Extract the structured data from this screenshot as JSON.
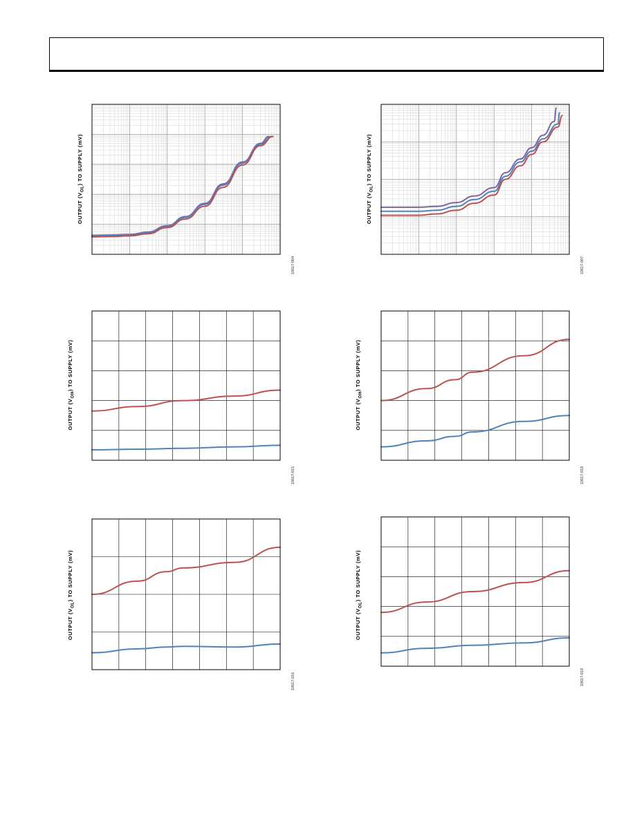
{
  "colors": {
    "red": "#c0504d",
    "blue": "#4f81bd",
    "purple": "#8064a2",
    "grid": "#d0d0d0",
    "frame": "#000000"
  },
  "header": {
    "title": ""
  },
  "charts": [
    {
      "ylabel_pre": "OUTPUT (V",
      "ylabel_sub": "OL",
      "ylabel_post": ") TO SUPPLY (mV)",
      "fig_id": "10617-004"
    },
    {
      "ylabel_pre": "OUTPUT (V",
      "ylabel_sub": "OL",
      "ylabel_post": ") TO SUPPLY (mV)",
      "fig_id": "10617-007"
    },
    {
      "ylabel_pre": "OUTPUT (V",
      "ylabel_sub": "OH",
      "ylabel_post": ") TO SUPPLY (mV)",
      "fig_id": "10617-015"
    },
    {
      "ylabel_pre": "OUTPUT (V",
      "ylabel_sub": "OH",
      "ylabel_post": ") TO SUPPLY (mV)",
      "fig_id": "10617-018"
    },
    {
      "ylabel_pre": "OUTPUT (V",
      "ylabel_sub": "OL",
      "ylabel_post": ") TO SUPPLY (mV)",
      "fig_id": "10617-016"
    },
    {
      "ylabel_pre": "OUTPUT (V",
      "ylabel_sub": "OL",
      "ylabel_post": ") TO SUPPLY (mV)",
      "fig_id": "10617-019"
    }
  ],
  "chart_data": [
    {
      "type": "line",
      "xscale": "log",
      "yscale": "log",
      "xlim": [
        0.001,
        100
      ],
      "ylim": [
        0.1,
        10000
      ],
      "grid": true,
      "series": [
        {
          "color": "purple",
          "x": [
            0.001,
            0.003,
            0.01,
            0.03,
            0.1,
            0.3,
            1,
            3,
            10,
            30,
            50
          ],
          "y": [
            0.43,
            0.44,
            0.46,
            0.55,
            0.9,
            1.8,
            5,
            22,
            120,
            500,
            850
          ]
        },
        {
          "color": "blue",
          "x": [
            0.001,
            0.003,
            0.01,
            0.03,
            0.1,
            0.3,
            1,
            3,
            10,
            30,
            60
          ],
          "y": [
            0.41,
            0.42,
            0.44,
            0.52,
            0.85,
            1.7,
            4.6,
            20,
            110,
            470,
            850
          ]
        },
        {
          "color": "red",
          "x": [
            0.001,
            0.003,
            0.01,
            0.03,
            0.1,
            0.3,
            1,
            3,
            10,
            30,
            65
          ],
          "y": [
            0.38,
            0.39,
            0.41,
            0.48,
            0.78,
            1.5,
            4,
            17,
            95,
            420,
            850
          ]
        }
      ]
    },
    {
      "type": "line",
      "xscale": "log",
      "yscale": "log",
      "xlim": [
        0.001,
        100
      ],
      "ylim": [
        1,
        10000
      ],
      "grid": true,
      "series": [
        {
          "color": "purple",
          "x": [
            0.001,
            0.01,
            0.03,
            0.1,
            0.3,
            1,
            2,
            5,
            10,
            20,
            40,
            45
          ],
          "y": [
            18,
            18,
            19,
            24,
            36,
            60,
            150,
            350,
            700,
            1500,
            3500,
            8000
          ]
        },
        {
          "color": "blue",
          "x": [
            0.001,
            0.01,
            0.03,
            0.1,
            0.3,
            1,
            2,
            5,
            10,
            20,
            50,
            55
          ],
          "y": [
            14,
            14,
            15,
            19,
            29,
            48,
            120,
            290,
            560,
            1200,
            3000,
            6000
          ]
        },
        {
          "color": "red",
          "x": [
            0.001,
            0.01,
            0.03,
            0.1,
            0.3,
            1,
            2,
            5,
            10,
            20,
            50,
            65
          ],
          "y": [
            11,
            11,
            12,
            15,
            23,
            38,
            100,
            230,
            460,
            1000,
            2500,
            5000
          ]
        }
      ]
    },
    {
      "type": "line",
      "xlim": [
        -40,
        125
      ],
      "ylim": [
        0,
        5
      ],
      "grid": true,
      "series": [
        {
          "color": "red",
          "x": [
            -40,
            0,
            40,
            85,
            125
          ],
          "y": [
            1.65,
            1.8,
            2.0,
            2.15,
            2.35
          ]
        },
        {
          "color": "blue",
          "x": [
            -40,
            0,
            40,
            85,
            125
          ],
          "y": [
            0.35,
            0.37,
            0.4,
            0.45,
            0.5
          ]
        }
      ]
    },
    {
      "type": "line",
      "xlim": [
        -40,
        125
      ],
      "ylim": [
        0,
        5
      ],
      "grid": true,
      "series": [
        {
          "color": "red",
          "x": [
            -40,
            0,
            25,
            40,
            85,
            125
          ],
          "y": [
            2.0,
            2.4,
            2.7,
            2.95,
            3.5,
            4.05
          ]
        },
        {
          "color": "blue",
          "x": [
            -40,
            0,
            25,
            40,
            85,
            125
          ],
          "y": [
            0.45,
            0.65,
            0.8,
            0.95,
            1.3,
            1.5
          ]
        }
      ]
    },
    {
      "type": "line",
      "xlim": [
        -40,
        125
      ],
      "ylim": [
        0,
        4
      ],
      "grid": true,
      "series": [
        {
          "color": "red",
          "x": [
            -40,
            0,
            25,
            40,
            85,
            125
          ],
          "y": [
            2.0,
            2.35,
            2.6,
            2.7,
            2.85,
            3.25
          ]
        },
        {
          "color": "blue",
          "x": [
            -40,
            0,
            25,
            40,
            85,
            125
          ],
          "y": [
            0.45,
            0.55,
            0.6,
            0.62,
            0.6,
            0.68
          ]
        }
      ]
    },
    {
      "type": "line",
      "xlim": [
        -40,
        125
      ],
      "ylim": [
        0,
        5
      ],
      "grid": true,
      "series": [
        {
          "color": "red",
          "x": [
            -40,
            0,
            40,
            85,
            125
          ],
          "y": [
            1.8,
            2.15,
            2.5,
            2.8,
            3.2
          ]
        },
        {
          "color": "blue",
          "x": [
            -40,
            0,
            40,
            85,
            125
          ],
          "y": [
            0.45,
            0.6,
            0.7,
            0.78,
            0.95
          ]
        }
      ]
    }
  ]
}
